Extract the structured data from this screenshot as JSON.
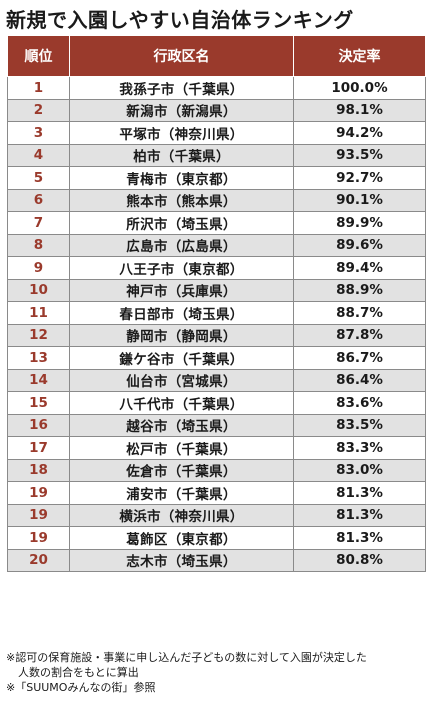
{
  "title": "新規で入園しやすい自治体ランキング",
  "table": {
    "headers": [
      "順位",
      "行政区名",
      "決定率"
    ],
    "rows": [
      {
        "rank": "1",
        "name": "我孫子市（千葉県）",
        "rate": "100.0%"
      },
      {
        "rank": "2",
        "name": "新潟市（新潟県）",
        "rate": "98.1%"
      },
      {
        "rank": "3",
        "name": "平塚市（神奈川県）",
        "rate": "94.2%"
      },
      {
        "rank": "4",
        "name": "柏市（千葉県）",
        "rate": "93.5%"
      },
      {
        "rank": "5",
        "name": "青梅市（東京都）",
        "rate": "92.7%"
      },
      {
        "rank": "6",
        "name": "熊本市（熊本県）",
        "rate": "90.1%"
      },
      {
        "rank": "7",
        "name": "所沢市（埼玉県）",
        "rate": "89.9%"
      },
      {
        "rank": "8",
        "name": "広島市（広島県）",
        "rate": "89.6%"
      },
      {
        "rank": "9",
        "name": "八王子市（東京都）",
        "rate": "89.4%"
      },
      {
        "rank": "10",
        "name": "神戸市（兵庫県）",
        "rate": "88.9%"
      },
      {
        "rank": "11",
        "name": "春日部市（埼玉県）",
        "rate": "88.7%"
      },
      {
        "rank": "12",
        "name": "静岡市（静岡県）",
        "rate": "87.8%"
      },
      {
        "rank": "13",
        "name": "鎌ケ谷市（千葉県）",
        "rate": "86.7%"
      },
      {
        "rank": "14",
        "name": "仙台市（宮城県）",
        "rate": "86.4%"
      },
      {
        "rank": "15",
        "name": "八千代市（千葉県）",
        "rate": "83.6%"
      },
      {
        "rank": "16",
        "name": "越谷市（埼玉県）",
        "rate": "83.5%"
      },
      {
        "rank": "17",
        "name": "松戸市（千葉県）",
        "rate": "83.3%"
      },
      {
        "rank": "18",
        "name": "佐倉市（千葉県）",
        "rate": "83.0%"
      },
      {
        "rank": "19",
        "name": "浦安市（千葉県）",
        "rate": "81.3%"
      },
      {
        "rank": "19",
        "name": "横浜市（神奈川県）",
        "rate": "81.3%"
      },
      {
        "rank": "19",
        "name": "葛飾区（東京都）",
        "rate": "81.3%"
      },
      {
        "rank": "20",
        "name": "志木市（埼玉県）",
        "rate": "80.8%"
      }
    ]
  },
  "notes": {
    "line1": "※認可の保育施設・事業に申し込んだ子どもの数に対して入園が決定した",
    "line2": "人数の割合をもとに算出",
    "line3": "※「SUUMOみんなの街」参照"
  },
  "colors": {
    "header_bg": "#9a3a2c",
    "rank_text": "#9a3a2c",
    "stripe": "#e2e2e2"
  }
}
